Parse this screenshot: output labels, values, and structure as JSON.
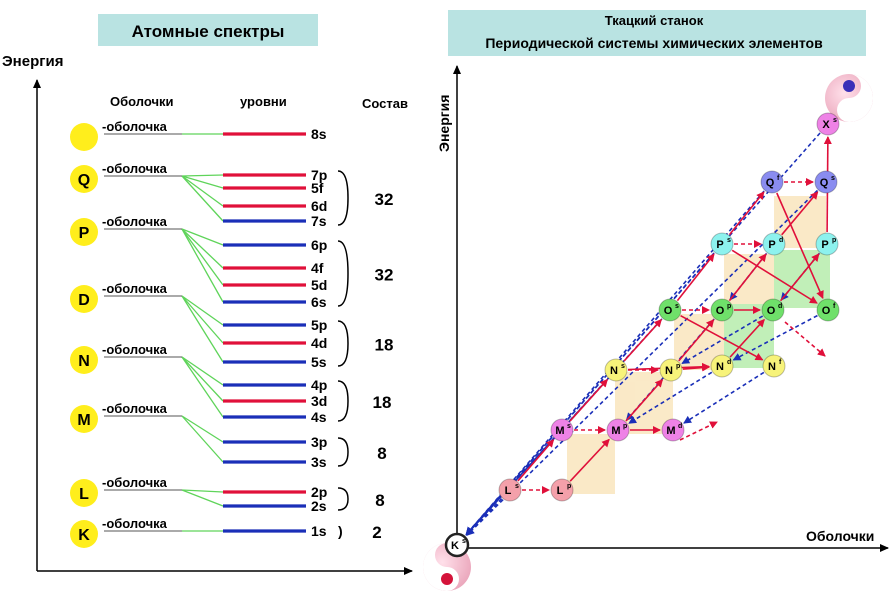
{
  "left_panel": {
    "title": "Атомные спектры",
    "y_axis_label": "Энергия",
    "col_shells": "Оболочки",
    "col_levels": "уровни",
    "col_composition": "Состав",
    "shell_suffix": "-оболочка",
    "shells": [
      {
        "letter": ""
      },
      {
        "letter": "Q"
      },
      {
        "letter": "P"
      },
      {
        "letter": "D"
      },
      {
        "letter": "N"
      },
      {
        "letter": "M"
      },
      {
        "letter": "L"
      },
      {
        "letter": "K"
      }
    ],
    "levels": [
      "8s",
      "7p",
      "5f",
      "6d",
      "7s",
      "6p",
      "4f",
      "5d",
      "6s",
      "5p",
      "4d",
      "5s",
      "4p",
      "3d",
      "4s",
      "3p",
      "3s",
      "2p",
      "2s",
      "1s"
    ],
    "compositions": [
      "32",
      "32",
      "18",
      "18",
      "8",
      "8",
      "2"
    ],
    "colors": {
      "red": "#e0103a",
      "blue": "#1a2fb8",
      "green": "#5fd45a",
      "shell_fill": "#ffee1c"
    }
  },
  "right_panel": {
    "title_line1": "Ткацкий станок",
    "title_line2": "Периодической  системы  химических элементов",
    "y_axis_label": "Энергия",
    "x_axis_label": "Оболочки",
    "nodes": [
      {
        "label": "K",
        "sup": "s",
        "color": "#ffffff",
        "ring": "#222222"
      },
      {
        "label": "L",
        "sup": "s",
        "color": "#f4a0aa"
      },
      {
        "label": "L",
        "sup": "p",
        "color": "#f4a0aa"
      },
      {
        "label": "M",
        "sup": "s",
        "color": "#ee82e6"
      },
      {
        "label": "M",
        "sup": "p",
        "color": "#ee82e6"
      },
      {
        "label": "M",
        "sup": "d",
        "color": "#ee82e6"
      },
      {
        "label": "N",
        "sup": "s",
        "color": "#f7f37a"
      },
      {
        "label": "N",
        "sup": "p",
        "color": "#f7f37a"
      },
      {
        "label": "N",
        "sup": "d",
        "color": "#f7f37a"
      },
      {
        "label": "N",
        "sup": "f",
        "color": "#f7f37a"
      },
      {
        "label": "O",
        "sup": "s",
        "color": "#6fe06a"
      },
      {
        "label": "O",
        "sup": "p",
        "color": "#6fe06a"
      },
      {
        "label": "O",
        "sup": "d",
        "color": "#6fe06a"
      },
      {
        "label": "O",
        "sup": "f",
        "color": "#6fe06a"
      },
      {
        "label": "P",
        "sup": "s",
        "color": "#8df2ee"
      },
      {
        "label": "P",
        "sup": "d",
        "color": "#8df2ee"
      },
      {
        "label": "P",
        "sup": "p",
        "color": "#8df2ee"
      },
      {
        "label": "Q",
        "sup": "f",
        "color": "#8a8cf0"
      },
      {
        "label": "Q",
        "sup": "s",
        "color": "#8a8cf0"
      },
      {
        "label": "X",
        "sup": "s",
        "color": "#ee82e6"
      }
    ]
  }
}
